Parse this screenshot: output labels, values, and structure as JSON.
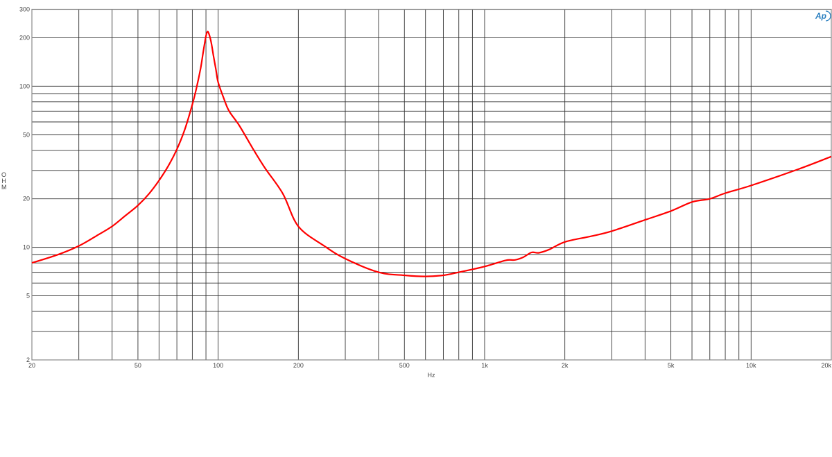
{
  "chart_data": {
    "type": "line",
    "title": "",
    "xlabel": "Hz",
    "ylabel": "OHM",
    "xscale": "log",
    "yscale": "log",
    "xlim": [
      20,
      20000
    ],
    "ylim": [
      2,
      300
    ],
    "grid": true,
    "x_tick_labels": [
      {
        "value": 20,
        "label": "20"
      },
      {
        "value": 50,
        "label": "50"
      },
      {
        "value": 100,
        "label": "100"
      },
      {
        "value": 200,
        "label": "200"
      },
      {
        "value": 500,
        "label": "500"
      },
      {
        "value": 1000,
        "label": "1k"
      },
      {
        "value": 2000,
        "label": "2k"
      },
      {
        "value": 5000,
        "label": "5k"
      },
      {
        "value": 10000,
        "label": "10k"
      },
      {
        "value": 20000,
        "label": "20k"
      }
    ],
    "y_tick_labels": [
      {
        "value": 2,
        "label": "2"
      },
      {
        "value": 5,
        "label": "5"
      },
      {
        "value": 10,
        "label": "10"
      },
      {
        "value": 20,
        "label": "20"
      },
      {
        "value": 50,
        "label": "50"
      },
      {
        "value": 100,
        "label": "100"
      },
      {
        "value": 200,
        "label": "200"
      },
      {
        "value": 300,
        "label": "300"
      }
    ],
    "series": [
      {
        "color": "#ff0000",
        "x": [
          20,
          25,
          30,
          35,
          40,
          45,
          50,
          55,
          60,
          65,
          70,
          75,
          80,
          83,
          86,
          88,
          90,
          91,
          92,
          94,
          96,
          98,
          100,
          105,
          110,
          120,
          135,
          150,
          175,
          200,
          250,
          300,
          400,
          500,
          600,
          700,
          800,
          1000,
          1200,
          1300,
          1400,
          1500,
          1600,
          1750,
          2000,
          2500,
          3000,
          4000,
          5000,
          6000,
          7000,
          8000,
          10000,
          15000,
          20000
        ],
        "y": [
          8.0,
          9.0,
          10.2,
          11.8,
          13.5,
          15.8,
          18.2,
          21.5,
          26,
          32,
          40.6,
          54,
          77,
          98,
          130,
          165,
          205,
          217,
          215,
          190,
          155,
          128,
          106,
          84,
          70,
          57,
          41,
          31,
          21.5,
          13.5,
          10.2,
          8.5,
          7.0,
          6.7,
          6.6,
          6.7,
          7.0,
          7.6,
          8.3,
          8.35,
          8.7,
          9.3,
          9.25,
          9.7,
          10.8,
          11.7,
          12.6,
          14.8,
          16.8,
          19.1,
          20,
          21.7,
          24.2,
          30.5,
          36.6
        ]
      }
    ]
  },
  "logo": "AP"
}
